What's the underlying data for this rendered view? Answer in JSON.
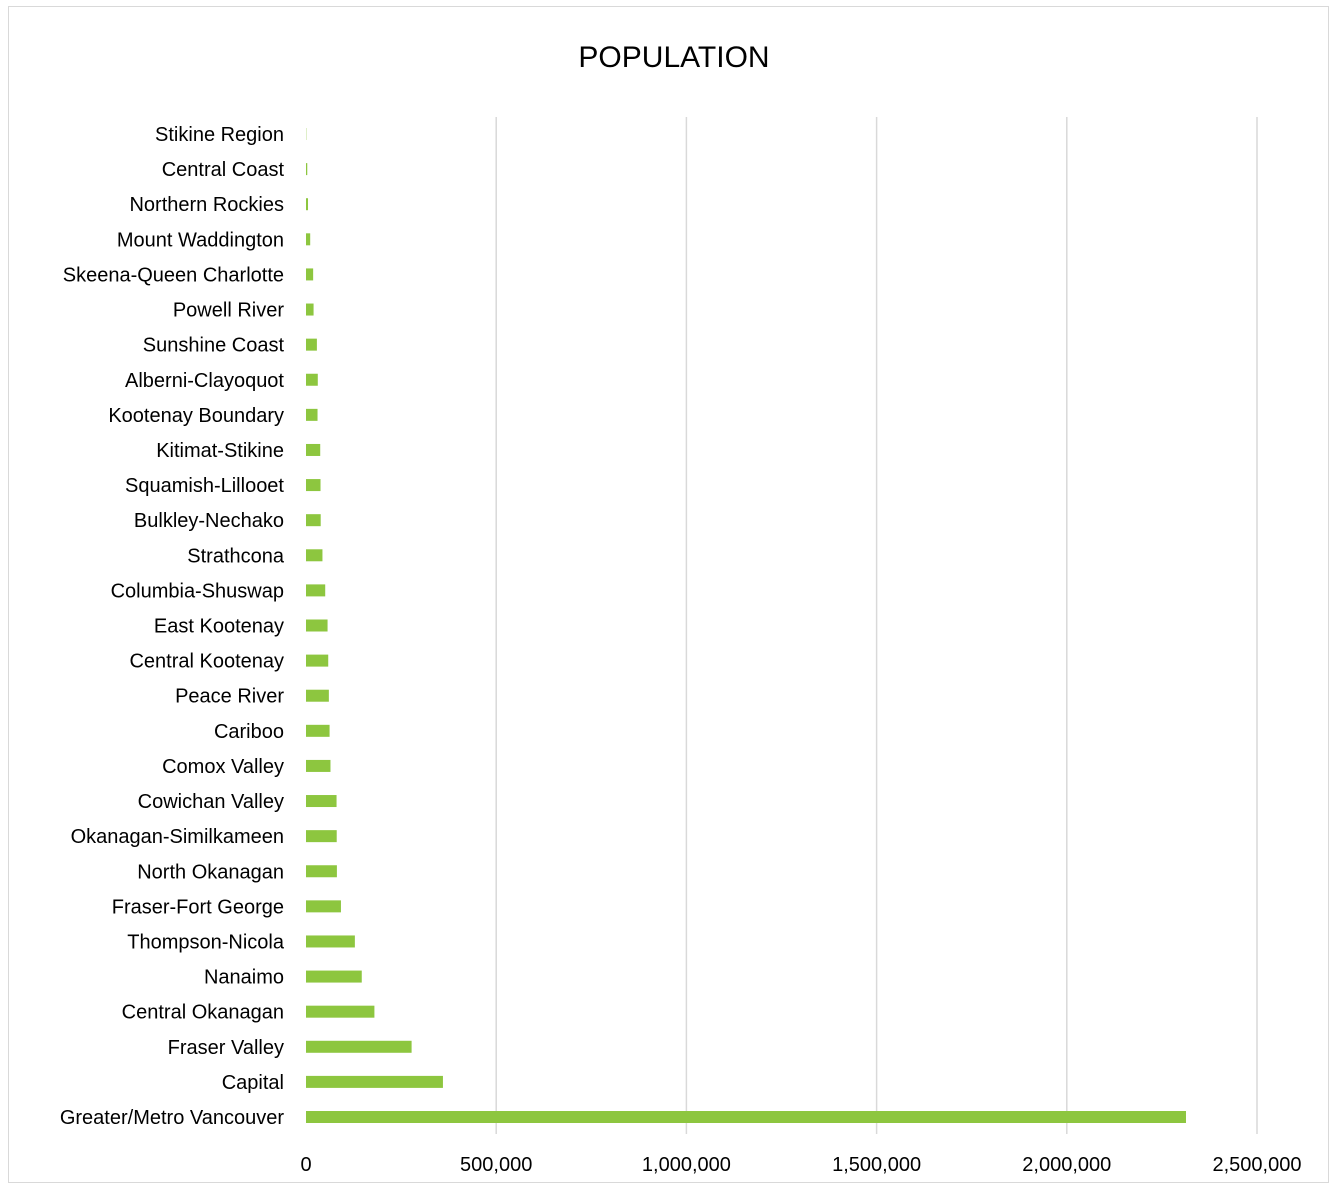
{
  "chart_data": {
    "type": "bar",
    "orientation": "horizontal",
    "title": "POPULATION",
    "xlabel": "",
    "ylabel": "",
    "xlim": [
      0,
      2500000
    ],
    "x_ticks": [
      0,
      500000,
      1000000,
      1500000,
      2000000,
      2500000
    ],
    "x_tick_labels": [
      "0",
      "500,000",
      "1,000,000",
      "1,500,000",
      "2,000,000",
      "2,500,000"
    ],
    "grid": "vertical",
    "legend": "none",
    "bar_color": "#8DC63F",
    "gridline_color": "#D9D9D9",
    "categories": [
      "Greater/Metro Vancouver",
      "Capital",
      "Fraser Valley",
      "Central Okanagan",
      "Nanaimo",
      "Thompson-Nicola",
      "Fraser-Fort George",
      "North Okanagan",
      "Okanagan-Similkameen",
      "Cowichan Valley",
      "Comox Valley",
      "Cariboo",
      "Peace River",
      "Central Kootenay",
      "East Kootenay",
      "Columbia-Shuswap",
      "Strathcona",
      "Bulkley-Nechako",
      "Squamish-Lillooet",
      "Kitimat-Stikine",
      "Kootenay Boundary",
      "Alberni-Clayoquot",
      "Sunshine Coast",
      "Powell River",
      "Skeena-Queen Charlotte",
      "Mount Waddington",
      "Northern Rockies",
      "Central Coast",
      "Stikine Region"
    ],
    "values": [
      2313328,
      359991,
      277593,
      179839,
      146574,
      128473,
      91879,
      81237,
      80742,
      80332,
      64338,
      61988,
      60082,
      58441,
      56685,
      50512,
      43252,
      38636,
      38171,
      37367,
      30315,
      30981,
      28619,
      19906,
      18784,
      11035,
      5290,
      3319,
      740
    ]
  }
}
